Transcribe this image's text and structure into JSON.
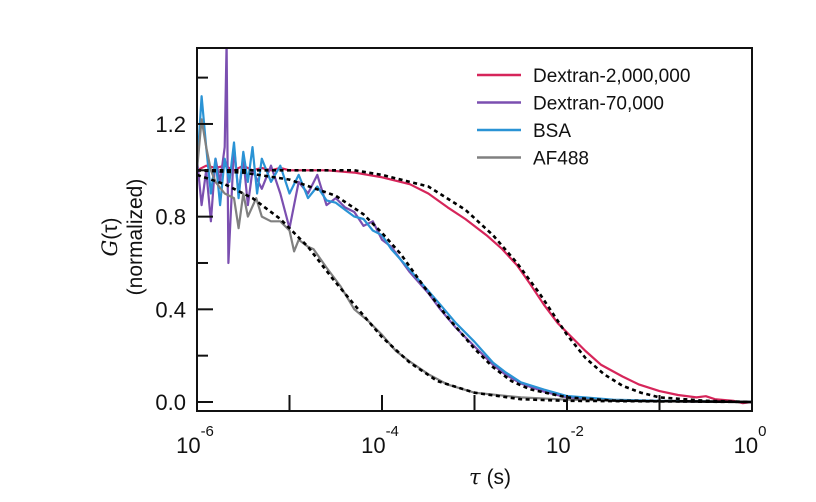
{
  "chart_data": {
    "type": "line",
    "title": "",
    "xlabel_symbol": "τ",
    "xlabel_unit": "(s)",
    "ylabel_line1_symbol": "G",
    "ylabel_line1_arg": "(τ)",
    "ylabel_line2": "(normalized)",
    "x_scale": "log",
    "x_values_are": "log10(tau / s)",
    "xlim_log10": [
      -6,
      0
    ],
    "ylim": [
      0,
      1.53
    ],
    "x_ticks": [
      {
        "base": "10",
        "exp": "-6",
        "value": -6
      },
      {
        "base": "10",
        "exp": "-4",
        "value": -4
      },
      {
        "base": "10",
        "exp": "-2",
        "value": -2
      },
      {
        "base": "10",
        "exp": "0",
        "value": 0
      }
    ],
    "x_minor_ticks": [
      -5,
      -3,
      -1
    ],
    "y_ticks": [
      {
        "label": "0.0",
        "value": 0
      },
      {
        "label": "0.4",
        "value": 0.4
      },
      {
        "label": "0.8",
        "value": 0.8
      },
      {
        "label": "1.2",
        "value": 1.2
      }
    ],
    "y_minor_ticks": [
      0.2,
      0.6,
      1.0,
      1.4
    ],
    "legend_position": "top-right",
    "series": [
      {
        "name": "Dextran-2,000,000",
        "color": "#d6255a",
        "points": [
          [
            -6,
            1.0
          ],
          [
            -5.9,
            1.02
          ],
          [
            -5.8,
            1.01
          ],
          [
            -5.7,
            1.02
          ],
          [
            -5.6,
            1.0
          ],
          [
            -5.5,
            1.02
          ],
          [
            -5.4,
            1.0
          ],
          [
            -5.3,
            1.01
          ],
          [
            -5.2,
            1.0
          ],
          [
            -5.1,
            1.01
          ],
          [
            -5,
            1.0
          ],
          [
            -4.8,
            1.0
          ],
          [
            -4.6,
            1.0
          ],
          [
            -4.3,
            0.99
          ],
          [
            -4,
            0.97
          ],
          [
            -3.7,
            0.94
          ],
          [
            -3.5,
            0.9
          ],
          [
            -3.29,
            0.84
          ],
          [
            -3.1,
            0.79
          ],
          [
            -2.87,
            0.72
          ],
          [
            -2.7,
            0.66
          ],
          [
            -2.54,
            0.59
          ],
          [
            -2.4,
            0.51
          ],
          [
            -2.25,
            0.42
          ],
          [
            -2.1,
            0.34
          ],
          [
            -2,
            0.3
          ],
          [
            -1.8,
            0.22
          ],
          [
            -1.63,
            0.16
          ],
          [
            -1.4,
            0.11
          ],
          [
            -1.22,
            0.075
          ],
          [
            -1,
            0.047
          ],
          [
            -0.8,
            0.03
          ],
          [
            -0.6,
            0.02
          ],
          [
            -0.5,
            0.025
          ],
          [
            -0.4,
            0.012
          ],
          [
            -0.2,
            0.005
          ],
          [
            -0.1,
            -0.005
          ],
          [
            0,
            0
          ]
        ]
      },
      {
        "name": "Dextran-70,000",
        "color": "#7b4fb0",
        "points": [
          [
            -6,
            1.05
          ],
          [
            -5.95,
            0.85
          ],
          [
            -5.9,
            1.0
          ],
          [
            -5.85,
            0.78
          ],
          [
            -5.8,
            1.05
          ],
          [
            -5.75,
            0.95
          ],
          [
            -5.7,
            1.1
          ],
          [
            -5.68,
            1.55
          ],
          [
            -5.66,
            0.6
          ],
          [
            -5.6,
            1.1
          ],
          [
            -5.55,
            0.9
          ],
          [
            -5.5,
            1.05
          ],
          [
            -5.45,
            0.85
          ],
          [
            -5.4,
            1.0
          ],
          [
            -5.3,
            0.92
          ],
          [
            -5.2,
            1.02
          ],
          [
            -5.1,
            0.9
          ],
          [
            -5.0,
            0.75
          ],
          [
            -4.9,
            0.95
          ],
          [
            -4.8,
            0.9
          ],
          [
            -4.7,
            0.98
          ],
          [
            -4.6,
            0.85
          ],
          [
            -4.5,
            0.88
          ],
          [
            -4.4,
            0.84
          ],
          [
            -4.3,
            0.82
          ],
          [
            -4.2,
            0.76
          ],
          [
            -4.1,
            0.78
          ],
          [
            -4,
            0.7
          ],
          [
            -3.9,
            0.67
          ],
          [
            -3.7,
            0.56
          ],
          [
            -3.5,
            0.47
          ],
          [
            -3.37,
            0.4
          ],
          [
            -3.2,
            0.32
          ],
          [
            -3,
            0.24
          ],
          [
            -2.8,
            0.16
          ],
          [
            -2.67,
            0.12
          ],
          [
            -2.5,
            0.08
          ],
          [
            -2.25,
            0.045
          ],
          [
            -2,
            0.02
          ],
          [
            -1.5,
            0.008
          ],
          [
            -1,
            0.003
          ],
          [
            0,
            0
          ]
        ]
      },
      {
        "name": "BSA",
        "color": "#2a93d5",
        "points": [
          [
            -6,
            1.0
          ],
          [
            -5.95,
            1.32
          ],
          [
            -5.9,
            1.1
          ],
          [
            -5.85,
            0.9
          ],
          [
            -5.8,
            1.05
          ],
          [
            -5.75,
            0.85
          ],
          [
            -5.7,
            1.05
          ],
          [
            -5.65,
            0.95
          ],
          [
            -5.6,
            1.12
          ],
          [
            -5.55,
            0.88
          ],
          [
            -5.5,
            1.08
          ],
          [
            -5.45,
            0.95
          ],
          [
            -5.4,
            1.1
          ],
          [
            -5.35,
            0.9
          ],
          [
            -5.3,
            1.05
          ],
          [
            -5.2,
            0.95
          ],
          [
            -5.1,
            1.02
          ],
          [
            -5.0,
            0.9
          ],
          [
            -4.9,
            0.98
          ],
          [
            -4.8,
            0.88
          ],
          [
            -4.7,
            0.93
          ],
          [
            -4.6,
            0.87
          ],
          [
            -4.5,
            0.86
          ],
          [
            -4.4,
            0.83
          ],
          [
            -4.3,
            0.8
          ],
          [
            -4.2,
            0.79
          ],
          [
            -4.1,
            0.74
          ],
          [
            -4,
            0.72
          ],
          [
            -3.9,
            0.66
          ],
          [
            -3.7,
            0.57
          ],
          [
            -3.5,
            0.48
          ],
          [
            -3.37,
            0.42
          ],
          [
            -3.2,
            0.34
          ],
          [
            -3,
            0.26
          ],
          [
            -2.8,
            0.17
          ],
          [
            -2.67,
            0.13
          ],
          [
            -2.5,
            0.085
          ],
          [
            -2.25,
            0.054
          ],
          [
            -2,
            0.026
          ],
          [
            -1.5,
            0.01
          ],
          [
            -1,
            0.005
          ],
          [
            0,
            0
          ]
        ]
      },
      {
        "name": "AF488",
        "color": "#808080",
        "points": [
          [
            -6,
            1.0
          ],
          [
            -5.95,
            1.22
          ],
          [
            -5.9,
            1.1
          ],
          [
            -5.85,
            1.0
          ],
          [
            -5.8,
            0.95
          ],
          [
            -5.7,
            0.9
          ],
          [
            -5.6,
            0.88
          ],
          [
            -5.55,
            0.75
          ],
          [
            -5.5,
            0.9
          ],
          [
            -5.45,
            0.8
          ],
          [
            -5.36,
            0.88
          ],
          [
            -5.3,
            0.8
          ],
          [
            -5.2,
            0.78
          ],
          [
            -5.1,
            0.78
          ],
          [
            -5,
            0.74
          ],
          [
            -4.95,
            0.65
          ],
          [
            -4.9,
            0.7
          ],
          [
            -4.8,
            0.67
          ],
          [
            -4.74,
            0.66
          ],
          [
            -4.6,
            0.58
          ],
          [
            -4.45,
            0.5
          ],
          [
            -4.3,
            0.4
          ],
          [
            -4.15,
            0.35
          ],
          [
            -4,
            0.29
          ],
          [
            -3.85,
            0.22
          ],
          [
            -3.7,
            0.175
          ],
          [
            -3.5,
            0.12
          ],
          [
            -3.29,
            0.075
          ],
          [
            -3,
            0.04
          ],
          [
            -2.5,
            0.02
          ],
          [
            -2,
            0.01
          ],
          [
            -1,
            0.003
          ],
          [
            0,
            0
          ]
        ]
      }
    ],
    "fits": [
      {
        "name": "Dextran-2,000,000 fit",
        "color": "#000000",
        "points": [
          [
            -6,
            1.0
          ],
          [
            -4.3,
            1.0
          ],
          [
            -4,
            0.98
          ],
          [
            -3.5,
            0.93
          ],
          [
            -3.1,
            0.83
          ],
          [
            -2.8,
            0.72
          ],
          [
            -2.54,
            0.6
          ],
          [
            -2.3,
            0.47
          ],
          [
            -2.1,
            0.35
          ],
          [
            -2,
            0.29
          ],
          [
            -1.8,
            0.19
          ],
          [
            -1.6,
            0.12
          ],
          [
            -1.4,
            0.07
          ],
          [
            -1.2,
            0.04
          ],
          [
            -1,
            0.02
          ],
          [
            -0.5,
            0.005
          ],
          [
            0,
            0
          ]
        ]
      },
      {
        "name": "BSA / Dextran-70,000 fit",
        "color": "#000000",
        "points": [
          [
            -6,
            1.0
          ],
          [
            -5.5,
            0.99
          ],
          [
            -5,
            0.96
          ],
          [
            -4.5,
            0.89
          ],
          [
            -4.2,
            0.81
          ],
          [
            -4,
            0.73
          ],
          [
            -3.8,
            0.64
          ],
          [
            -3.55,
            0.5
          ],
          [
            -3.3,
            0.37
          ],
          [
            -3,
            0.23
          ],
          [
            -2.8,
            0.15
          ],
          [
            -2.6,
            0.09
          ],
          [
            -2.4,
            0.055
          ],
          [
            -2,
            0.02
          ],
          [
            -1.5,
            0.006
          ],
          [
            0,
            0
          ]
        ]
      },
      {
        "name": "AF488 fit",
        "color": "#000000",
        "points": [
          [
            -6,
            0.98
          ],
          [
            -5.7,
            0.94
          ],
          [
            -5.4,
            0.88
          ],
          [
            -5.1,
            0.79
          ],
          [
            -4.8,
            0.67
          ],
          [
            -4.53,
            0.53
          ],
          [
            -4.3,
            0.42
          ],
          [
            -4,
            0.28
          ],
          [
            -3.7,
            0.17
          ],
          [
            -3.4,
            0.09
          ],
          [
            -3,
            0.04
          ],
          [
            -2.5,
            0.012
          ],
          [
            -2,
            0.005
          ],
          [
            0,
            0
          ]
        ]
      }
    ]
  }
}
